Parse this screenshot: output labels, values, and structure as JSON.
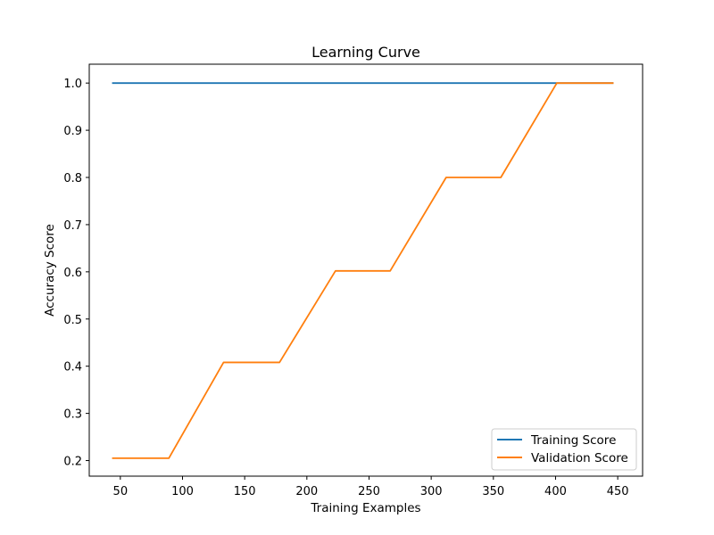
{
  "chart_data": {
    "type": "line",
    "title": "Learning Curve",
    "xlabel": "Training Examples",
    "ylabel": "Accuracy Score",
    "xlim": [
      25,
      470
    ],
    "ylim": [
      0.167,
      1.04
    ],
    "xticks": [
      50,
      100,
      150,
      200,
      250,
      300,
      350,
      400,
      450
    ],
    "yticks": [
      0.2,
      0.3,
      0.4,
      0.5,
      0.6,
      0.7,
      0.8,
      0.9,
      1.0
    ],
    "grid": false,
    "legend_position": "lower-right",
    "x": [
      44,
      89,
      133,
      178,
      223,
      267,
      312,
      356,
      401,
      446
    ],
    "series": [
      {
        "name": "Training Score",
        "color": "#1f77b4",
        "values": [
          1.0,
          1.0,
          1.0,
          1.0,
          1.0,
          1.0,
          1.0,
          1.0,
          1.0,
          1.0
        ]
      },
      {
        "name": "Validation Score",
        "color": "#ff7f0e",
        "values": [
          0.205,
          0.205,
          0.408,
          0.408,
          0.602,
          0.602,
          0.8,
          0.8,
          1.0,
          1.0
        ]
      }
    ]
  }
}
